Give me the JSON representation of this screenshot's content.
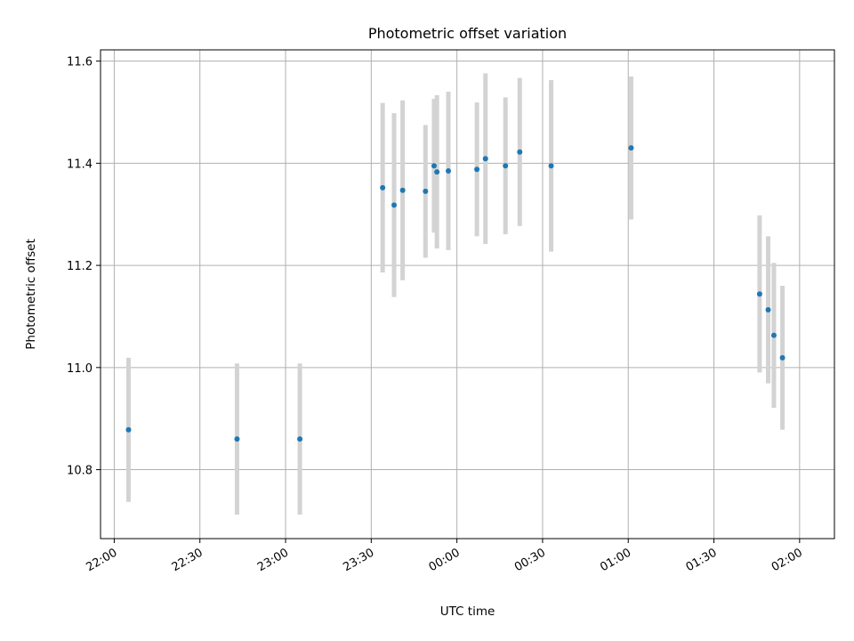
{
  "chart_data": {
    "type": "scatter",
    "title": "Photometric offset variation",
    "xlabel": "UTC time",
    "ylabel": "Photometric offset",
    "x_tick_labels": [
      "22:00",
      "22:30",
      "23:00",
      "23:30",
      "00:00",
      "00:30",
      "01:00",
      "01:30",
      "02:00"
    ],
    "x_tick_minutes": [
      0,
      30,
      60,
      90,
      120,
      150,
      180,
      210,
      240
    ],
    "x_range_minutes": [
      -4.8,
      252.2
    ],
    "y_ticks": [
      10.8,
      11.0,
      11.2,
      11.4,
      11.6
    ],
    "y_tick_labels": [
      "10.8",
      "11.0",
      "11.2",
      "11.4",
      "11.6"
    ],
    "ylim": [
      10.665,
      11.622
    ],
    "grid": true,
    "colors": {
      "points": "#1f77b4",
      "errorbars": "#d3d3d3",
      "grid": "#b0b0b0"
    },
    "series": [
      {
        "points": [
          {
            "x": "22:05",
            "y": 10.878,
            "err": 0.141
          },
          {
            "x": "22:43",
            "y": 10.86,
            "err": 0.148
          },
          {
            "x": "23:05",
            "y": 10.86,
            "err": 0.148
          },
          {
            "x": "23:34",
            "y": 11.352,
            "err": 0.166
          },
          {
            "x": "23:38",
            "y": 11.318,
            "err": 0.18
          },
          {
            "x": "23:41",
            "y": 11.347,
            "err": 0.176
          },
          {
            "x": "23:49",
            "y": 11.345,
            "err": 0.13
          },
          {
            "x": "23:52",
            "y": 11.395,
            "err": 0.131
          },
          {
            "x": "23:53",
            "y": 11.383,
            "err": 0.15
          },
          {
            "x": "23:57",
            "y": 11.385,
            "err": 0.155
          },
          {
            "x": "00:07",
            "y": 11.388,
            "err": 0.131
          },
          {
            "x": "00:10",
            "y": 11.409,
            "err": 0.167
          },
          {
            "x": "00:17",
            "y": 11.395,
            "err": 0.134
          },
          {
            "x": "00:22",
            "y": 11.422,
            "err": 0.145
          },
          {
            "x": "00:33",
            "y": 11.395,
            "err": 0.168
          },
          {
            "x": "01:01",
            "y": 11.43,
            "err": 0.14
          },
          {
            "x": "01:46",
            "y": 11.144,
            "err": 0.154
          },
          {
            "x": "01:49",
            "y": 11.113,
            "err": 0.144
          },
          {
            "x": "01:51",
            "y": 11.063,
            "err": 0.142
          },
          {
            "x": "01:54",
            "y": 11.019,
            "err": 0.141
          }
        ]
      }
    ]
  }
}
